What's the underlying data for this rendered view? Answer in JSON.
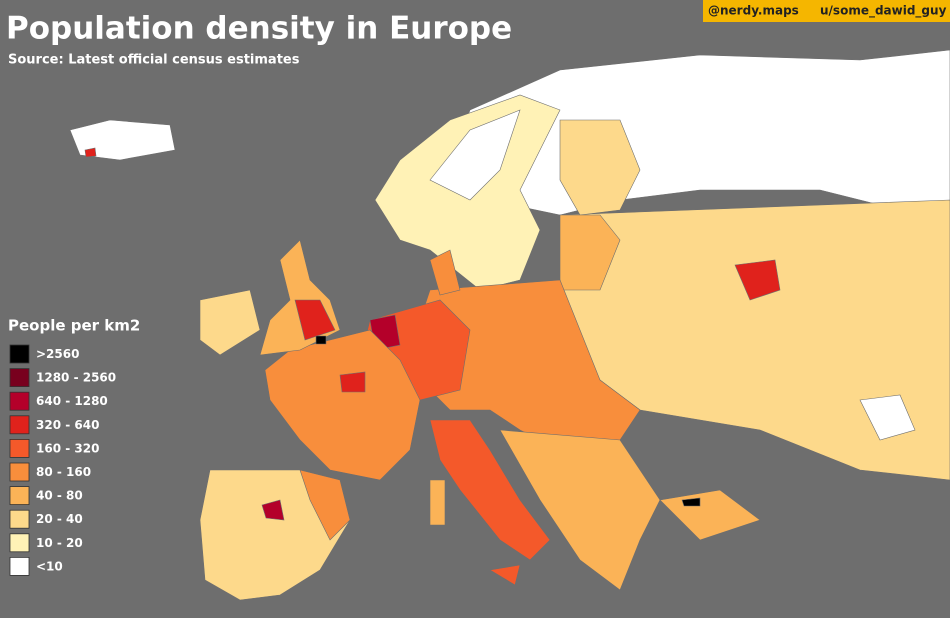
{
  "header": {
    "title": "Population density in Europe",
    "subtitle": "Source: Latest official census estimates"
  },
  "credits": {
    "instagram": "@nerdy.maps",
    "reddit": "u/some_dawid_guy"
  },
  "legend": {
    "title": "People per km2",
    "items": [
      {
        "label": ">2560",
        "color": "#000000"
      },
      {
        "label": "1280 - 2560",
        "color": "#78001e"
      },
      {
        "label": "640 - 1280",
        "color": "#b4002a"
      },
      {
        "label": "320 - 640",
        "color": "#e0221c"
      },
      {
        "label": "160 - 320",
        "color": "#f4592a"
      },
      {
        "label": "80 - 160",
        "color": "#f88e3c"
      },
      {
        "label": "40 - 80",
        "color": "#fbb357"
      },
      {
        "label": "20 - 40",
        "color": "#fdd98b"
      },
      {
        "label": "10 - 20",
        "color": "#fff2b6"
      },
      {
        "label": "<10",
        "color": "#ffffff"
      }
    ]
  }
}
